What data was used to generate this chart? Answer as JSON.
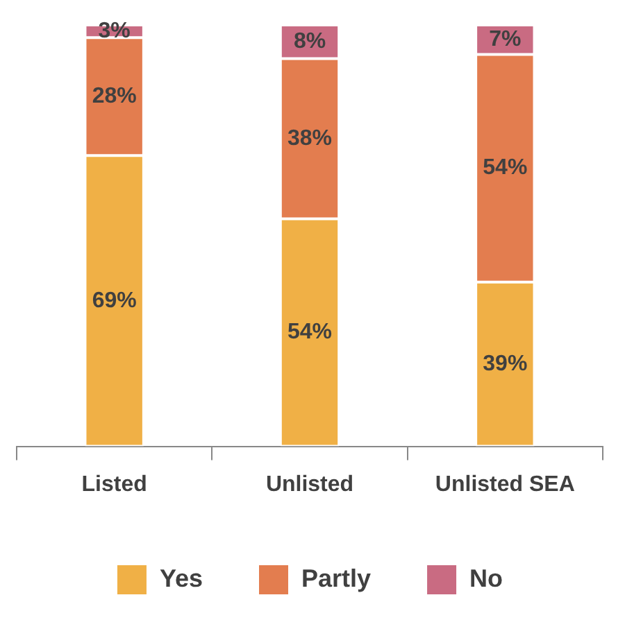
{
  "chart_data": {
    "type": "bar",
    "stacked": true,
    "categories": [
      "Listed",
      "Unlisted",
      "Unlisted SEA"
    ],
    "series": [
      {
        "name": "Yes",
        "color": "#f0b046",
        "values": [
          69,
          54,
          39
        ],
        "value_labels": [
          "69%",
          "54%",
          "39%"
        ]
      },
      {
        "name": "Partly",
        "color": "#e37d4f",
        "values": [
          28,
          38,
          54
        ],
        "value_labels": [
          "28%",
          "38%",
          "54%"
        ]
      },
      {
        "name": "No",
        "color": "#c96b82",
        "values": [
          3,
          8,
          7
        ],
        "value_labels": [
          "3%",
          "8%",
          "7%"
        ]
      }
    ],
    "legend": "bottom",
    "grid": false
  }
}
